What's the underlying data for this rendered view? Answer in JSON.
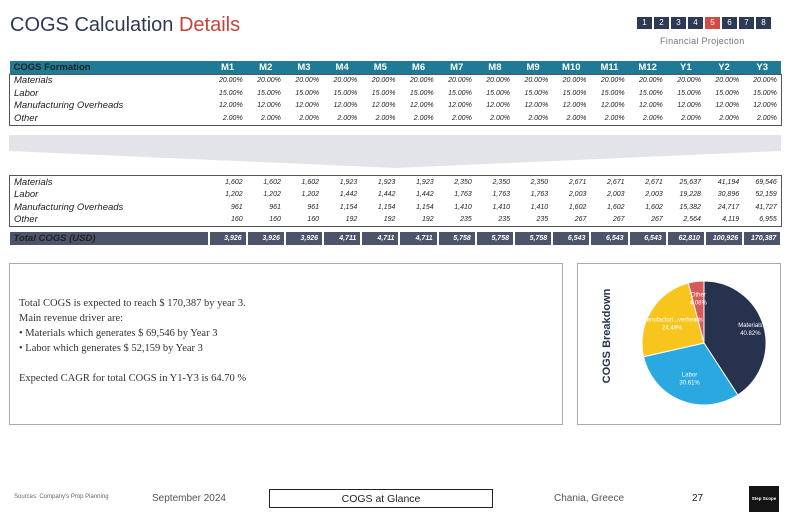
{
  "header": {
    "title_main": "COGS Calculation",
    "title_accent": "Details",
    "pages": [
      "1",
      "2",
      "3",
      "4",
      "5",
      "6",
      "7",
      "8"
    ],
    "active_page": "5",
    "subtitle": "Financial Projection"
  },
  "formation_table": {
    "header": [
      "COGS Formation",
      "M1",
      "M2",
      "M3",
      "M4",
      "M5",
      "M6",
      "M7",
      "M8",
      "M9",
      "M10",
      "M11",
      "M12",
      "Y1",
      "Y2",
      "Y3"
    ],
    "rows": [
      {
        "label": "Materials",
        "values": [
          "20.00%",
          "20.00%",
          "20.00%",
          "20.00%",
          "20.00%",
          "20.00%",
          "20.00%",
          "20.00%",
          "20.00%",
          "20.00%",
          "20.00%",
          "20.00%",
          "20.00%",
          "20.00%",
          "20.00%"
        ]
      },
      {
        "label": "Labor",
        "values": [
          "15.00%",
          "15.00%",
          "15.00%",
          "15.00%",
          "15.00%",
          "15.00%",
          "15.00%",
          "15.00%",
          "15.00%",
          "15.00%",
          "15.00%",
          "15.00%",
          "15.00%",
          "15.00%",
          "15.00%"
        ]
      },
      {
        "label": "Manufacturing Overheads",
        "values": [
          "12.00%",
          "12.00%",
          "12.00%",
          "12.00%",
          "12.00%",
          "12.00%",
          "12.00%",
          "12.00%",
          "12.00%",
          "12.00%",
          "12.00%",
          "12.00%",
          "12.00%",
          "12.00%",
          "12.00%"
        ]
      },
      {
        "label": "Other",
        "values": [
          "2.00%",
          "2.00%",
          "2.00%",
          "2.00%",
          "2.00%",
          "2.00%",
          "2.00%",
          "2.00%",
          "2.00%",
          "2.00%",
          "2.00%",
          "2.00%",
          "2.00%",
          "2.00%",
          "2.00%"
        ]
      }
    ]
  },
  "values_table": {
    "rows": [
      {
        "label": "Materials",
        "values": [
          "1,602",
          "1,602",
          "1,602",
          "1,923",
          "1,923",
          "1,923",
          "2,350",
          "2,350",
          "2,350",
          "2,671",
          "2,671",
          "2,671",
          "25,637",
          "41,194",
          "69,546"
        ]
      },
      {
        "label": "Labor",
        "values": [
          "1,202",
          "1,202",
          "1,202",
          "1,442",
          "1,442",
          "1,442",
          "1,763",
          "1,763",
          "1,763",
          "2,003",
          "2,003",
          "2,003",
          "19,228",
          "30,896",
          "52,159"
        ]
      },
      {
        "label": "Manufacturing Overheads",
        "values": [
          "961",
          "961",
          "961",
          "1,154",
          "1,154",
          "1,154",
          "1,410",
          "1,410",
          "1,410",
          "1,602",
          "1,602",
          "1,602",
          "15,382",
          "24,717",
          "41,727"
        ]
      },
      {
        "label": "Other",
        "values": [
          "160",
          "160",
          "160",
          "192",
          "192",
          "192",
          "235",
          "235",
          "235",
          "267",
          "267",
          "267",
          "2,564",
          "4,119",
          "6,955"
        ]
      }
    ],
    "total": {
      "label": "Total COGS (USD)",
      "values": [
        "3,926",
        "3,926",
        "3,926",
        "4,711",
        "4,711",
        "4,711",
        "5,758",
        "5,758",
        "5,758",
        "6,543",
        "6,543",
        "6,543",
        "62,810",
        "100,926",
        "170,387"
      ]
    }
  },
  "summary": {
    "line1": "Total COGS is expected to reach $ 170,387 by year 3.",
    "line2": "Main revenue driver are:",
    "line3": "• Materials which generates $ 69,546 by Year 3",
    "line4": "• Labor which generates $ 52,159 by Year 3",
    "line5": "Expected CAGR for total COGS in Y1-Y3 is 64.70 %"
  },
  "chart_data": {
    "type": "pie",
    "title": "COGS Breakdown",
    "slices": [
      {
        "name": "Materials",
        "value": 40.82,
        "label": "40.82%",
        "color": "#27324f"
      },
      {
        "name": "Labor",
        "value": 30.61,
        "label": "30.61%",
        "color": "#2aa8e0"
      },
      {
        "name": "Manufacturing Overheads",
        "value": 24.49,
        "label": "24.49%",
        "display_name": "Manufacturi...verheads",
        "color": "#f7c51e"
      },
      {
        "name": "Other",
        "value": 4.08,
        "label": "4.08%",
        "color": "#d65b58"
      }
    ]
  },
  "footer": {
    "sources": "Sources: Company's Prop Planning",
    "date": "September 2024",
    "center": "COGS at Glance",
    "location": "Chania, Greece",
    "page": "27",
    "logo": "Step Scope"
  }
}
